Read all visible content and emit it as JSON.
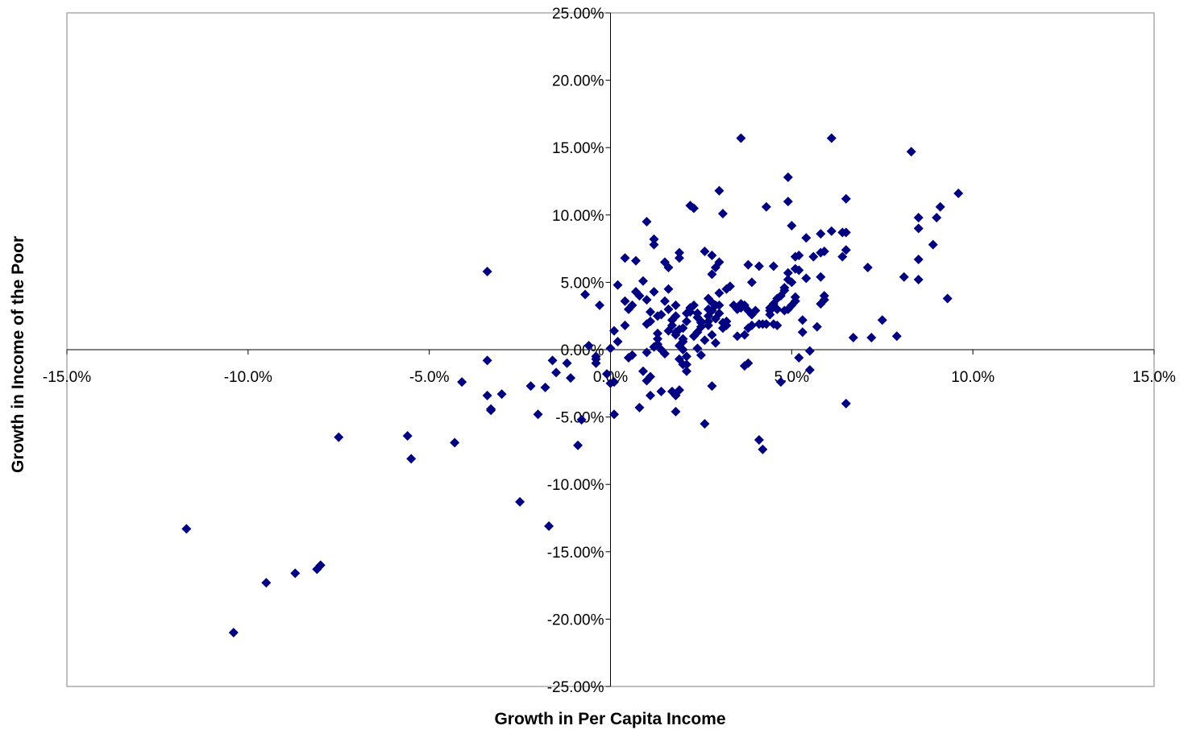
{
  "chart_data": {
    "type": "scatter",
    "xlabel": "Growth in Per Capita Income",
    "ylabel": "Growth in Income of the Poor",
    "xlim": [
      -0.15,
      0.15
    ],
    "ylim": [
      -0.25,
      0.25
    ],
    "x_ticks": [
      -0.15,
      -0.1,
      -0.05,
      0.0,
      0.05,
      0.1,
      0.15
    ],
    "x_tick_labels": [
      "-15.0%",
      "-10.0%",
      "-5.0%",
      "0.0%",
      "5.0%",
      "10.0%",
      "15.0%"
    ],
    "y_ticks": [
      0.25,
      0.2,
      0.15,
      0.1,
      0.05,
      0.0,
      -0.05,
      -0.1,
      -0.15,
      -0.2,
      -0.25
    ],
    "y_tick_labels": [
      "25.00%",
      "20.00%",
      "15.00%",
      "10.00%",
      "5.00%",
      "0.00%",
      "-5.00%",
      "-10.00%",
      "-15.00%",
      "-20.00%",
      "-25.00%"
    ],
    "grid": false,
    "legend": "none",
    "marker_color": "#000080",
    "marker": "diamond",
    "points": [
      [
        -0.117,
        -0.133
      ],
      [
        -0.104,
        -0.21
      ],
      [
        -0.095,
        -0.173
      ],
      [
        -0.087,
        -0.166
      ],
      [
        -0.081,
        -0.163
      ],
      [
        -0.08,
        -0.16
      ],
      [
        -0.075,
        -0.065
      ],
      [
        -0.056,
        -0.064
      ],
      [
        -0.055,
        -0.081
      ],
      [
        -0.043,
        -0.069
      ],
      [
        -0.041,
        -0.024
      ],
      [
        -0.034,
        0.058
      ],
      [
        -0.034,
        -0.008
      ],
      [
        -0.034,
        -0.034
      ],
      [
        -0.033,
        -0.044
      ],
      [
        -0.033,
        -0.045
      ],
      [
        -0.03,
        -0.033
      ],
      [
        -0.025,
        -0.113
      ],
      [
        -0.022,
        -0.027
      ],
      [
        -0.02,
        -0.048
      ],
      [
        -0.018,
        -0.028
      ],
      [
        -0.017,
        -0.131
      ],
      [
        -0.016,
        -0.008
      ],
      [
        -0.015,
        -0.017
      ],
      [
        -0.012,
        -0.01
      ],
      [
        -0.011,
        -0.021
      ],
      [
        -0.009,
        -0.071
      ],
      [
        -0.008,
        -0.052
      ],
      [
        -0.007,
        0.041
      ],
      [
        -0.006,
        0.003
      ],
      [
        -0.004,
        -0.005
      ],
      [
        -0.004,
        -0.01
      ],
      [
        -0.004,
        -0.007
      ],
      [
        -0.003,
        0.033
      ],
      [
        -0.001,
        -0.018
      ],
      [
        -0.0,
        0.001
      ],
      [
        0.0,
        -0.025
      ],
      [
        0.001,
        -0.024
      ],
      [
        0.001,
        0.014
      ],
      [
        0.001,
        -0.048
      ],
      [
        0.002,
        0.006
      ],
      [
        0.002,
        0.048
      ],
      [
        0.004,
        0.018
      ],
      [
        0.004,
        0.068
      ],
      [
        0.004,
        0.036
      ],
      [
        0.005,
        -0.006
      ],
      [
        0.005,
        0.03
      ],
      [
        0.006,
        0.033
      ],
      [
        0.006,
        -0.004
      ],
      [
        0.007,
        0.043
      ],
      [
        0.007,
        0.066
      ],
      [
        0.008,
        -0.043
      ],
      [
        0.008,
        0.04
      ],
      [
        0.009,
        -0.016
      ],
      [
        0.01,
        0.037
      ],
      [
        0.01,
        -0.002
      ],
      [
        0.01,
        -0.023
      ],
      [
        0.009,
        0.051
      ],
      [
        0.01,
        0.095
      ],
      [
        0.01,
        0.019
      ],
      [
        0.011,
        0.028
      ],
      [
        0.011,
        0.021
      ],
      [
        0.011,
        -0.02
      ],
      [
        0.011,
        -0.034
      ],
      [
        0.012,
        0.043
      ],
      [
        0.012,
        0.078
      ],
      [
        0.012,
        0.082
      ],
      [
        0.012,
        0.002
      ],
      [
        0.013,
        0.025
      ],
      [
        0.013,
        0.008
      ],
      [
        0.013,
        0.012
      ],
      [
        0.013,
        0.004
      ],
      [
        0.014,
        0.026
      ],
      [
        0.014,
        0.0
      ],
      [
        0.014,
        -0.031
      ],
      [
        0.015,
        0.065
      ],
      [
        0.015,
        0.036
      ],
      [
        0.015,
        -0.003
      ],
      [
        0.016,
        0.061
      ],
      [
        0.016,
        0.014
      ],
      [
        0.016,
        0.045
      ],
      [
        0.016,
        0.03
      ],
      [
        0.017,
        0.022
      ],
      [
        0.017,
        -0.031
      ],
      [
        0.017,
        0.018
      ],
      [
        0.018,
        -0.034
      ],
      [
        0.018,
        -0.046
      ],
      [
        0.018,
        0.013
      ],
      [
        0.018,
        0.033
      ],
      [
        0.018,
        0.025
      ],
      [
        0.018,
        0.011
      ],
      [
        0.019,
        0.015
      ],
      [
        0.019,
        -0.03
      ],
      [
        0.019,
        0.003
      ],
      [
        0.019,
        0.068
      ],
      [
        0.019,
        -0.007
      ],
      [
        0.019,
        0.072
      ],
      [
        0.02,
        0.016
      ],
      [
        0.02,
        0.0
      ],
      [
        0.02,
        0.008
      ],
      [
        0.02,
        -0.011
      ],
      [
        0.02,
        0.006
      ],
      [
        0.021,
        -0.011
      ],
      [
        0.021,
        -0.016
      ],
      [
        0.021,
        0.021
      ],
      [
        0.021,
        -0.005
      ],
      [
        0.021,
        0.027
      ],
      [
        0.022,
        0.031
      ],
      [
        0.022,
        0.107
      ],
      [
        0.022,
        0.031
      ],
      [
        0.022,
        0.028
      ],
      [
        0.023,
        0.01
      ],
      [
        0.023,
        0.105
      ],
      [
        0.023,
        0.033
      ],
      [
        0.024,
        0.001
      ],
      [
        0.024,
        0.027
      ],
      [
        0.024,
        0.013
      ],
      [
        0.024,
        0.024
      ],
      [
        0.025,
        0.017
      ],
      [
        0.025,
        0.02
      ],
      [
        0.025,
        -0.004
      ],
      [
        0.025,
        0.021
      ],
      [
        0.026,
        0.007
      ],
      [
        0.026,
        -0.055
      ],
      [
        0.026,
        0.073
      ],
      [
        0.027,
        0.03
      ],
      [
        0.027,
        0.021
      ],
      [
        0.027,
        0.038
      ],
      [
        0.027,
        0.025
      ],
      [
        0.027,
        0.018
      ],
      [
        0.028,
        0.029
      ],
      [
        0.028,
        0.035
      ],
      [
        0.028,
        -0.027
      ],
      [
        0.028,
        0.011
      ],
      [
        0.028,
        0.056
      ],
      [
        0.028,
        0.07
      ],
      [
        0.029,
        0.033
      ],
      [
        0.029,
        0.023
      ],
      [
        0.029,
        0.061
      ],
      [
        0.029,
        0.005
      ],
      [
        0.03,
        0.042
      ],
      [
        0.03,
        0.118
      ],
      [
        0.03,
        0.065
      ],
      [
        0.03,
        0.027
      ],
      [
        0.03,
        0.033
      ],
      [
        0.031,
        0.016
      ],
      [
        0.031,
        0.101
      ],
      [
        0.031,
        0.02
      ],
      [
        0.032,
        0.045
      ],
      [
        0.032,
        0.018
      ],
      [
        0.032,
        0.021
      ],
      [
        0.033,
        0.047
      ],
      [
        0.034,
        0.033
      ],
      [
        0.035,
        0.01
      ],
      [
        0.035,
        0.03
      ],
      [
        0.035,
        0.031
      ],
      [
        0.036,
        0.157
      ],
      [
        0.036,
        0.034
      ],
      [
        0.036,
        0.031
      ],
      [
        0.037,
        0.011
      ],
      [
        0.037,
        -0.012
      ],
      [
        0.037,
        0.033
      ],
      [
        0.038,
        0.016
      ],
      [
        0.038,
        0.063
      ],
      [
        0.038,
        0.029
      ],
      [
        0.038,
        -0.01
      ],
      [
        0.039,
        0.05
      ],
      [
        0.039,
        0.026
      ],
      [
        0.039,
        0.018
      ],
      [
        0.04,
        0.029
      ],
      [
        0.041,
        -0.067
      ],
      [
        0.041,
        0.062
      ],
      [
        0.041,
        0.019
      ],
      [
        0.042,
        0.019
      ],
      [
        0.042,
        -0.074
      ],
      [
        0.043,
        0.019
      ],
      [
        0.043,
        0.106
      ],
      [
        0.044,
        0.029
      ],
      [
        0.044,
        0.026
      ],
      [
        0.044,
        0.031
      ],
      [
        0.045,
        0.034
      ],
      [
        0.045,
        0.019
      ],
      [
        0.045,
        0.062
      ],
      [
        0.046,
        0.038
      ],
      [
        0.046,
        0.03
      ],
      [
        0.046,
        0.018
      ],
      [
        0.047,
        -0.024
      ],
      [
        0.047,
        0.04
      ],
      [
        0.048,
        0.029
      ],
      [
        0.048,
        0.046
      ],
      [
        0.048,
        0.044
      ],
      [
        0.049,
        0.052
      ],
      [
        0.049,
        0.057
      ],
      [
        0.049,
        0.03
      ],
      [
        0.049,
        0.128
      ],
      [
        0.049,
        0.11
      ],
      [
        0.05,
        0.092
      ],
      [
        0.05,
        0.033
      ],
      [
        0.05,
        0.05
      ],
      [
        0.051,
        0.036
      ],
      [
        0.051,
        0.069
      ],
      [
        0.051,
        0.06
      ],
      [
        0.051,
        0.039
      ],
      [
        0.052,
        -0.006
      ],
      [
        0.052,
        0.07
      ],
      [
        0.052,
        0.059
      ],
      [
        0.053,
        0.022
      ],
      [
        0.053,
        0.013
      ],
      [
        0.054,
        0.053
      ],
      [
        0.054,
        0.083
      ],
      [
        0.055,
        -0.001
      ],
      [
        0.055,
        -0.015
      ],
      [
        0.056,
        0.069
      ],
      [
        0.057,
        0.017
      ],
      [
        0.058,
        0.054
      ],
      [
        0.058,
        0.086
      ],
      [
        0.058,
        0.034
      ],
      [
        0.058,
        0.072
      ],
      [
        0.059,
        0.037
      ],
      [
        0.059,
        0.073
      ],
      [
        0.059,
        0.04
      ],
      [
        0.061,
        0.157
      ],
      [
        0.061,
        0.088
      ],
      [
        0.064,
        0.087
      ],
      [
        0.064,
        0.069
      ],
      [
        0.065,
        0.112
      ],
      [
        0.065,
        0.074
      ],
      [
        0.065,
        0.087
      ],
      [
        0.065,
        -0.04
      ],
      [
        0.067,
        0.009
      ],
      [
        0.071,
        0.061
      ],
      [
        0.072,
        0.009
      ],
      [
        0.075,
        0.022
      ],
      [
        0.079,
        0.01
      ],
      [
        0.081,
        0.054
      ],
      [
        0.083,
        0.147
      ],
      [
        0.085,
        0.052
      ],
      [
        0.085,
        0.098
      ],
      [
        0.085,
        0.09
      ],
      [
        0.085,
        0.067
      ],
      [
        0.089,
        0.078
      ],
      [
        0.09,
        0.098
      ],
      [
        0.091,
        0.106
      ],
      [
        0.093,
        0.038
      ],
      [
        0.096,
        0.116
      ]
    ]
  }
}
